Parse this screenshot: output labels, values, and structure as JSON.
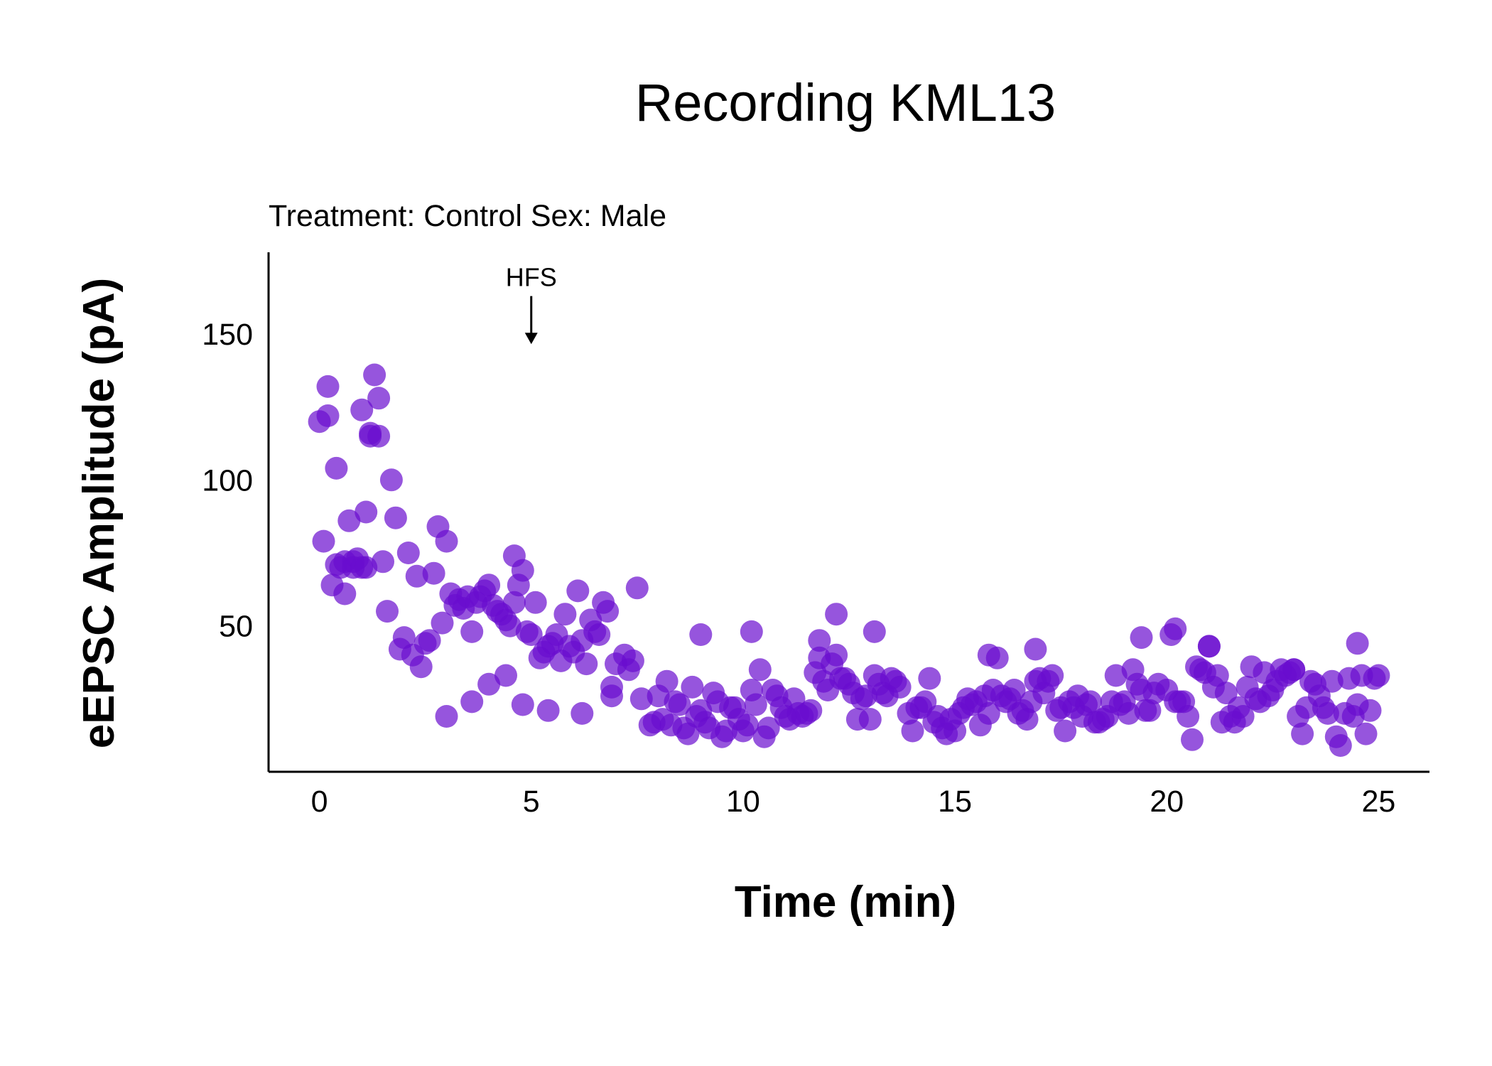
{
  "chart_data": {
    "type": "scatter",
    "title": "Recording KML13",
    "subtitle": "Treatment: Control  Sex: Male",
    "xlabel": "Time (min)",
    "ylabel": "eEPSC Amplitude (pA)",
    "xlim": [
      -1.2,
      26.2
    ],
    "ylim": [
      0,
      178
    ],
    "x_ticks": [
      0,
      5,
      10,
      15,
      20,
      25
    ],
    "y_ticks": [
      50,
      100,
      150
    ],
    "grid": false,
    "point_color": "#6a0dcf",
    "point_opacity": 0.7,
    "annotations": [
      {
        "text": "HFS",
        "x": 5,
        "arrow_from_y": 163,
        "arrow_to_y": 147
      }
    ],
    "series": [
      {
        "x": [
          0.0,
          0.2,
          0.4,
          0.6,
          0.8,
          1.0,
          1.2,
          1.4,
          1.6,
          1.8,
          0.1,
          0.3,
          0.5,
          0.7,
          0.9,
          1.1,
          1.3,
          1.5,
          1.7,
          1.9,
          0.2,
          0.4,
          0.6,
          0.8,
          1.0,
          1.2,
          1.4,
          2.0,
          2.2,
          2.4,
          2.6,
          2.8,
          3.0,
          2.1,
          2.3,
          2.5,
          2.7,
          2.9,
          3.2,
          3.4,
          3.6,
          3.8,
          4.0,
          4.2,
          4.4,
          4.6,
          4.8,
          5.0,
          5.2,
          5.4,
          5.6,
          5.8,
          6.0,
          6.2,
          6.4,
          6.6,
          6.8,
          7.0,
          7.2,
          7.4,
          3.1,
          3.3,
          3.5,
          3.7,
          3.9,
          4.1,
          4.3,
          4.5,
          4.7,
          4.9,
          5.1,
          5.3,
          5.5,
          5.7,
          5.9,
          6.1,
          6.3,
          6.5,
          6.7,
          6.9,
          3.0,
          3.6,
          4.0,
          4.4,
          4.8,
          5.4,
          6.2,
          6.9,
          7.3,
          7.6,
          7.8,
          8.0,
          8.2,
          8.4,
          8.6,
          8.8,
          9.0,
          9.2,
          9.4,
          9.6,
          9.8,
          10.0,
          10.2,
          10.4,
          10.6,
          10.8,
          11.0,
          11.2,
          11.4,
          11.6,
          11.8,
          12.0,
          12.2,
          12.4,
          12.6,
          12.8,
          13.0,
          13.2,
          13.4,
          13.6,
          7.9,
          8.1,
          8.3,
          8.5,
          8.7,
          8.9,
          9.1,
          9.3,
          9.5,
          9.7,
          9.9,
          10.1,
          10.3,
          10.5,
          10.7,
          10.9,
          11.1,
          11.3,
          11.5,
          11.7,
          11.9,
          12.1,
          12.3,
          12.5,
          12.7,
          12.9,
          13.1,
          13.3,
          13.5,
          13.7,
          13.9,
          14.1,
          14.3,
          14.5,
          14.7,
          14.9,
          15.1,
          15.3,
          15.5,
          15.7,
          15.9,
          16.1,
          16.3,
          16.5,
          16.7,
          16.9,
          17.1,
          17.3,
          17.5,
          17.7,
          17.9,
          18.1,
          18.3,
          18.5,
          18.7,
          18.9,
          19.1,
          19.3,
          19.5,
          19.7,
          14.0,
          14.2,
          14.4,
          14.6,
          14.8,
          15.0,
          15.2,
          15.4,
          15.6,
          15.8,
          16.0,
          16.2,
          16.4,
          16.6,
          16.8,
          17.0,
          17.2,
          17.4,
          17.6,
          17.8,
          18.0,
          18.2,
          18.4,
          18.6,
          18.8,
          19.0,
          19.2,
          19.4,
          19.6,
          19.8,
          20.0,
          20.2,
          20.4,
          20.6,
          20.8,
          21.0,
          21.2,
          21.4,
          21.6,
          21.8,
          22.0,
          22.2,
          22.4,
          22.6,
          22.8,
          23.0,
          23.2,
          23.4,
          23.6,
          23.8,
          24.0,
          24.2,
          24.4,
          24.6,
          24.8,
          25.0,
          20.1,
          20.3,
          20.5,
          20.7,
          20.9,
          21.1,
          21.3,
          21.5,
          21.7,
          21.9,
          22.1,
          22.3,
          22.5,
          22.7,
          22.9,
          23.1,
          23.3,
          23.5,
          23.7,
          23.9,
          24.1,
          24.3,
          24.5,
          24.7,
          24.9,
          9.0,
          10.2,
          12.2,
          13.1,
          15.8,
          19.4,
          20.2,
          21.0,
          24.5,
          11.8,
          16.9,
          23.0,
          7.5,
          4.6,
          1.1
        ],
        "y": [
          120,
          132,
          104,
          61,
          72,
          124,
          115,
          128,
          55,
          87,
          79,
          64,
          70,
          86,
          73,
          89,
          136,
          72,
          100,
          42,
          122,
          71,
          72,
          70,
          70,
          116,
          115,
          46,
          40,
          36,
          45,
          84,
          79,
          75,
          67,
          44,
          68,
          51,
          57,
          56,
          48,
          60,
          64,
          55,
          52,
          58,
          69,
          47,
          39,
          43,
          47,
          54,
          41,
          45,
          52,
          47,
          55,
          37,
          40,
          38,
          61,
          59,
          60,
          58,
          62,
          57,
          54,
          50,
          64,
          48,
          58,
          41,
          44,
          38,
          43,
          62,
          37,
          48,
          58,
          29,
          19,
          24,
          30,
          33,
          23,
          21,
          20,
          26,
          35,
          25,
          16,
          26,
          31,
          24,
          15,
          29,
          21,
          15,
          24,
          14,
          22,
          14,
          28,
          35,
          15,
          26,
          19,
          25,
          19,
          21,
          39,
          28,
          40,
          32,
          27,
          25,
          18,
          30,
          26,
          31,
          17,
          18,
          16,
          23,
          13,
          19,
          17,
          27,
          12,
          22,
          18,
          16,
          23,
          12,
          28,
          22,
          18,
          20,
          20,
          34,
          31,
          37,
          32,
          30,
          18,
          26,
          33,
          27,
          32,
          29,
          20,
          22,
          24,
          17,
          15,
          18,
          20,
          25,
          24,
          26,
          28,
          26,
          25,
          20,
          18,
          31,
          27,
          33,
          22,
          24,
          26,
          23,
          17,
          18,
          24,
          23,
          20,
          30,
          21,
          27,
          14,
          22,
          32,
          19,
          13,
          14,
          22,
          23,
          16,
          20,
          39,
          24,
          28,
          21,
          24,
          32,
          31,
          21,
          14,
          22,
          19,
          24,
          17,
          19,
          33,
          24,
          35,
          28,
          21,
          30,
          28,
          24,
          24,
          11,
          35,
          43,
          33,
          27,
          17,
          19,
          36,
          24,
          26,
          31,
          33,
          35,
          13,
          31,
          26,
          20,
          12,
          20,
          19,
          33,
          21,
          33,
          47,
          24,
          19,
          36,
          34,
          29,
          17,
          19,
          22,
          29,
          25,
          34,
          28,
          35,
          34,
          19,
          22,
          30,
          22,
          31,
          9,
          32,
          23,
          13,
          32,
          47,
          48,
          54,
          48,
          40,
          46,
          49,
          43,
          44,
          45,
          42,
          35,
          63,
          74,
          70
        ]
      }
    ]
  }
}
